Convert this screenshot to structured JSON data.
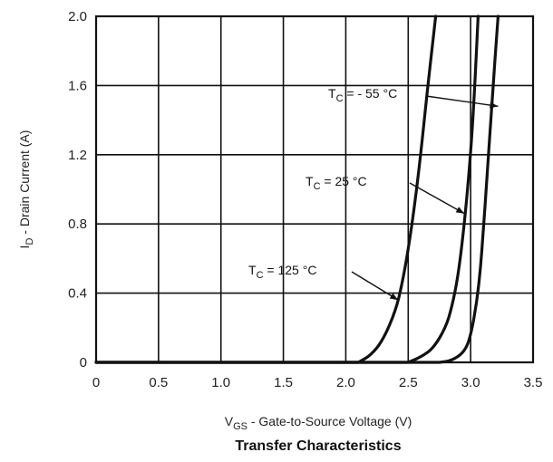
{
  "chart_data": {
    "type": "line",
    "title": "Transfer Characteristics",
    "xlabel": "V",
    "xlabel_sub": "GS",
    "xlabel_rest": " - Gate-to-Source Voltage (V)",
    "ylabel": "I",
    "ylabel_sub": "D",
    "ylabel_rest": " - Drain Current (A)",
    "xlim": [
      0,
      3.5
    ],
    "ylim": [
      0,
      2.0
    ],
    "xticks": [
      "0",
      "0.5",
      "1.0",
      "1.5",
      "2.0",
      "2.5",
      "3.0",
      "3.5"
    ],
    "xtick_values": [
      0,
      0.5,
      1.0,
      1.5,
      2.0,
      2.5,
      3.0,
      3.5
    ],
    "yticks": [
      "0",
      "0.4",
      "0.8",
      "1.2",
      "1.6",
      "2.0"
    ],
    "ytick_values": [
      0,
      0.4,
      0.8,
      1.2,
      1.6,
      2.0
    ],
    "grid": true,
    "series": [
      {
        "label": "T_C = 125 °C",
        "x": [
          2.1,
          2.2,
          2.3,
          2.4,
          2.45,
          2.5,
          2.55,
          2.6,
          2.65,
          2.72
        ],
        "y": [
          0,
          0.04,
          0.13,
          0.3,
          0.45,
          0.65,
          0.9,
          1.2,
          1.55,
          2.0
        ]
      },
      {
        "label": "T_C = 25 °C",
        "x": [
          2.5,
          2.6,
          2.7,
          2.8,
          2.85,
          2.9,
          2.95,
          3.0,
          3.03,
          3.06
        ],
        "y": [
          0,
          0.03,
          0.08,
          0.2,
          0.32,
          0.5,
          0.8,
          1.2,
          1.55,
          2.0
        ]
      },
      {
        "label": "T_C = - 55 °C",
        "x": [
          2.75,
          2.85,
          2.95,
          3.0,
          3.05,
          3.08,
          3.1,
          3.13,
          3.17,
          3.22
        ],
        "y": [
          0,
          0.01,
          0.06,
          0.15,
          0.35,
          0.55,
          0.75,
          1.05,
          1.5,
          2.0
        ]
      }
    ],
    "annotations": [
      {
        "prefix": "T",
        "sub": "C",
        "rest": " = - 55 °C",
        "target": [
          3.22,
          1.48
        ]
      },
      {
        "prefix": "T",
        "sub": "C",
        "rest": " =  25 °C",
        "target": [
          2.95,
          0.86
        ]
      },
      {
        "prefix": "T",
        "sub": "C",
        "rest": " = 125 °C",
        "target": [
          2.42,
          0.36
        ]
      }
    ]
  }
}
